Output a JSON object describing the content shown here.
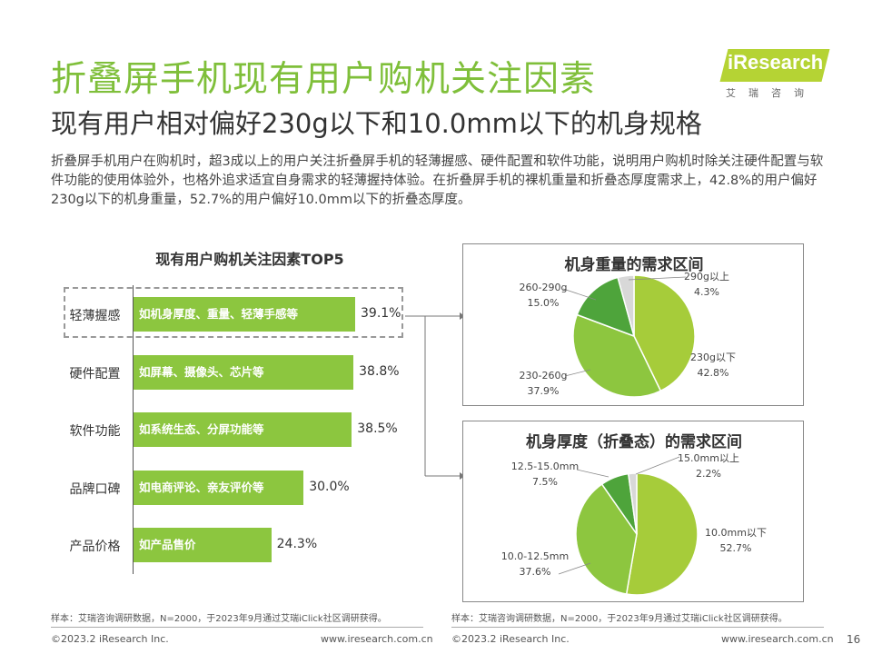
{
  "header": {
    "title": "折叠屏手机现有用户购机关注因素",
    "subtitle": "现有用户相对偏好230g以下和10.0mm以下的机身规格",
    "description": "折叠屏手机用户在购机时，超3成以上的用户关注折叠屏手机的轻薄握感、硬件配置和软件功能，说明用户购机时除关注硬件配置与软件功能的使用体验外，也格外追求适宜自身需求的轻薄握持体验。在折叠屏手机的裸机重量和折叠态厚度需求上，42.8%的用户偏好230g以下的机身重量，52.7%的用户偏好10.0mm以下的折叠态厚度。"
  },
  "logo": {
    "text": "iResearch",
    "cn": "艾瑞咨询"
  },
  "colors": {
    "title_green": "#7fbf3a",
    "bar_green": "#8cc63f",
    "pie_light": "#a6cc3a",
    "pie_mid": "#8dc63f",
    "pie_dark": "#4ea43b",
    "pie_gray": "#d8d8d8"
  },
  "chart_data": [
    {
      "type": "bar",
      "orientation": "horizontal",
      "title": "现有用户购机关注因素TOP5",
      "categories": [
        "轻薄握感",
        "硬件配置",
        "软件功能",
        "品牌口碑",
        "产品价格"
      ],
      "bar_labels": [
        "如机身厚度、重量、轻薄手感等",
        "如屏幕、摄像头、芯片等",
        "如系统生态、分屏功能等",
        "如电商评论、亲友评价等",
        "如产品售价"
      ],
      "values": [
        39.1,
        38.8,
        38.5,
        30.0,
        24.3
      ],
      "value_labels": [
        "39.1%",
        "38.8%",
        "38.5%",
        "30.0%",
        "24.3%"
      ],
      "xlim": [
        0,
        39.1
      ],
      "highlight": "轻薄握感"
    },
    {
      "type": "pie",
      "title": "机身重量的需求区间",
      "slices": [
        {
          "name": "230g以下",
          "value": 42.8,
          "label": "42.8%",
          "color": "#a6cc3a"
        },
        {
          "name": "230-260g",
          "value": 37.9,
          "label": "37.9%",
          "color": "#8dc63f"
        },
        {
          "name": "260-290g",
          "value": 15.0,
          "label": "15.0%",
          "color": "#4ea43b"
        },
        {
          "name": "290g以上",
          "value": 4.3,
          "label": "4.3%",
          "color": "#d8d8d8"
        }
      ]
    },
    {
      "type": "pie",
      "title": "机身厚度（折叠态）的需求区间",
      "slices": [
        {
          "name": "10.0mm以下",
          "value": 52.7,
          "label": "52.7%",
          "color": "#a6cc3a"
        },
        {
          "name": "10.0-12.5mm",
          "value": 37.6,
          "label": "37.6%",
          "color": "#8dc63f"
        },
        {
          "name": "12.5-15.0mm",
          "value": 7.5,
          "label": "7.5%",
          "color": "#4ea43b"
        },
        {
          "name": "15.0mm以上",
          "value": 2.2,
          "label": "2.2%",
          "color": "#d8d8d8"
        }
      ]
    }
  ],
  "notes": {
    "left": "样本：艾瑞咨询调研数据，N=2000，于2023年9月通过艾瑞iClick社区调研获得。",
    "right": "样本：艾瑞咨询调研数据，N=2000，于2023年9月通过艾瑞iClick社区调研获得。"
  },
  "footer": {
    "left_copyright": "©2023.2 iResearch Inc.",
    "left_url": "www.iresearch.com.cn",
    "right_copyright": "©2023.2 iResearch Inc.",
    "right_url": "www.iresearch.com.cn",
    "page_number": "16"
  }
}
